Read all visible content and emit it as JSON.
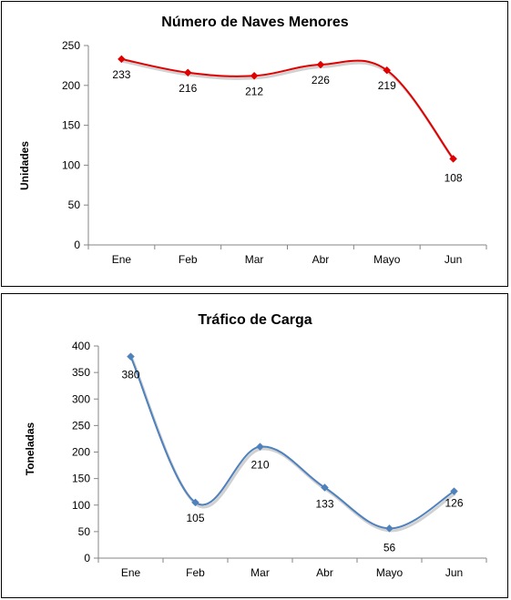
{
  "colors": {
    "chart1_line": "#e00000",
    "chart2_line": "#4f81bd"
  },
  "chart_data": [
    {
      "type": "line",
      "title": "Número de Naves Menores",
      "xlabel": "",
      "ylabel": "Unidades",
      "categories": [
        "Ene",
        "Feb",
        "Mar",
        "Abr",
        "Mayo",
        "Jun"
      ],
      "series": [
        {
          "values": [
            233,
            216,
            212,
            226,
            219,
            108
          ]
        }
      ],
      "data_labels": [
        "233",
        "216",
        "212",
        "226",
        "219",
        "108"
      ],
      "yticks": [
        "0",
        "50",
        "100",
        "150",
        "200",
        "250"
      ],
      "ylim": [
        0,
        250
      ],
      "smooth": true,
      "marker": "diamond",
      "grid": false,
      "legend": "none"
    },
    {
      "type": "line",
      "title": "Tráfico de Carga",
      "xlabel": "",
      "ylabel": "Toneladas",
      "categories": [
        "Ene",
        "Feb",
        "Mar",
        "Abr",
        "Mayo",
        "Jun"
      ],
      "series": [
        {
          "values": [
            380,
            105,
            210,
            133,
            56,
            126
          ]
        }
      ],
      "data_labels": [
        "380",
        "105",
        "210",
        "133",
        "56",
        "126"
      ],
      "yticks": [
        "0",
        "50",
        "100",
        "150",
        "200",
        "250",
        "300",
        "350",
        "400"
      ],
      "ylim": [
        0,
        400
      ],
      "smooth": true,
      "marker": "diamond",
      "grid": false,
      "legend": "none"
    }
  ]
}
